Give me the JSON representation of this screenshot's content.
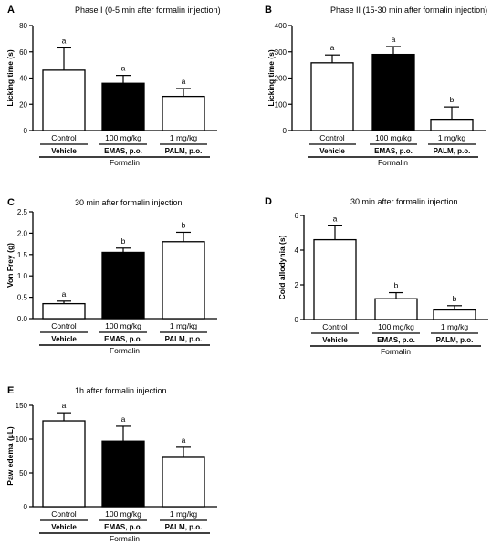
{
  "figure": {
    "group_labels": [
      "Vehicle",
      "EMAS, p.o.",
      "PALM, p.o."
    ],
    "dose_labels": [
      "Control",
      "100 mg/kg",
      "1 mg/kg"
    ],
    "formalin_label": "Formalin"
  },
  "chart_data": [
    {
      "type": "bar",
      "panel": "A",
      "title": "Phase I (0-5 min after formalin injection)",
      "ylabel": "Licking time (s)",
      "xlabel": "",
      "categories": [
        "Control",
        "100 mg/kg",
        "1 mg/kg"
      ],
      "values": [
        46,
        36,
        26
      ],
      "errors": [
        17,
        6,
        6
      ],
      "significance": [
        "a",
        "a",
        "a"
      ],
      "fills": [
        "#ffffff",
        "#000000",
        "#ffffff"
      ],
      "ylim": [
        0,
        80
      ],
      "yticks": [
        0,
        20,
        40,
        60,
        80
      ],
      "grid": false
    },
    {
      "type": "bar",
      "panel": "B",
      "title": "Phase II (15-30 min after formalin injection)",
      "ylabel": "Licking time (s)",
      "xlabel": "",
      "categories": [
        "Control",
        "100 mg/kg",
        "1 mg/kg"
      ],
      "values": [
        258,
        290,
        43
      ],
      "errors": [
        30,
        30,
        47
      ],
      "significance": [
        "a",
        "a",
        "b"
      ],
      "fills": [
        "#ffffff",
        "#000000",
        "#ffffff"
      ],
      "ylim": [
        0,
        400
      ],
      "yticks": [
        0,
        100,
        200,
        300,
        400
      ],
      "grid": false
    },
    {
      "type": "bar",
      "panel": "C",
      "title": "30 min after formalin injection",
      "ylabel": "Von Frey (g)",
      "xlabel": "",
      "categories": [
        "Control",
        "100 mg/kg",
        "1 mg/kg"
      ],
      "values": [
        0.35,
        1.55,
        1.8
      ],
      "errors": [
        0.06,
        0.1,
        0.22
      ],
      "significance": [
        "a",
        "b",
        "b"
      ],
      "fills": [
        "#ffffff",
        "#000000",
        "#ffffff"
      ],
      "ylim": [
        0,
        2.5
      ],
      "yticks": [
        0.0,
        0.5,
        1.0,
        1.5,
        2.0,
        2.5
      ],
      "ytick_labels": [
        "0.0",
        "0.5",
        "1.0",
        "1.5",
        "2.0",
        "2.5"
      ],
      "grid": false
    },
    {
      "type": "bar",
      "panel": "D",
      "title": "30 min after formalin injection",
      "ylabel": "Cold allodynia (s)",
      "xlabel": "",
      "categories": [
        "Control",
        "100 mg/kg",
        "1 mg/kg"
      ],
      "values": [
        4.6,
        1.2,
        0.55
      ],
      "errors": [
        0.8,
        0.35,
        0.25
      ],
      "significance": [
        "a",
        "b",
        "b"
      ],
      "fills": [
        "#ffffff",
        "#ffffff",
        "#ffffff"
      ],
      "ylim": [
        0,
        6
      ],
      "yticks": [
        0,
        2,
        4,
        6
      ],
      "grid": false
    },
    {
      "type": "bar",
      "panel": "E",
      "title": "1h after formalin injection",
      "ylabel": "Paw edema (µL)",
      "xlabel": "",
      "categories": [
        "Control",
        "100 mg/kg",
        "1 mg/kg"
      ],
      "values": [
        127,
        97,
        73
      ],
      "errors": [
        12,
        22,
        15
      ],
      "significance": [
        "a",
        "a",
        "a"
      ],
      "fills": [
        "#ffffff",
        "#000000",
        "#ffffff"
      ],
      "ylim": [
        0,
        150
      ],
      "yticks": [
        0,
        50,
        100,
        150
      ],
      "grid": false
    }
  ]
}
